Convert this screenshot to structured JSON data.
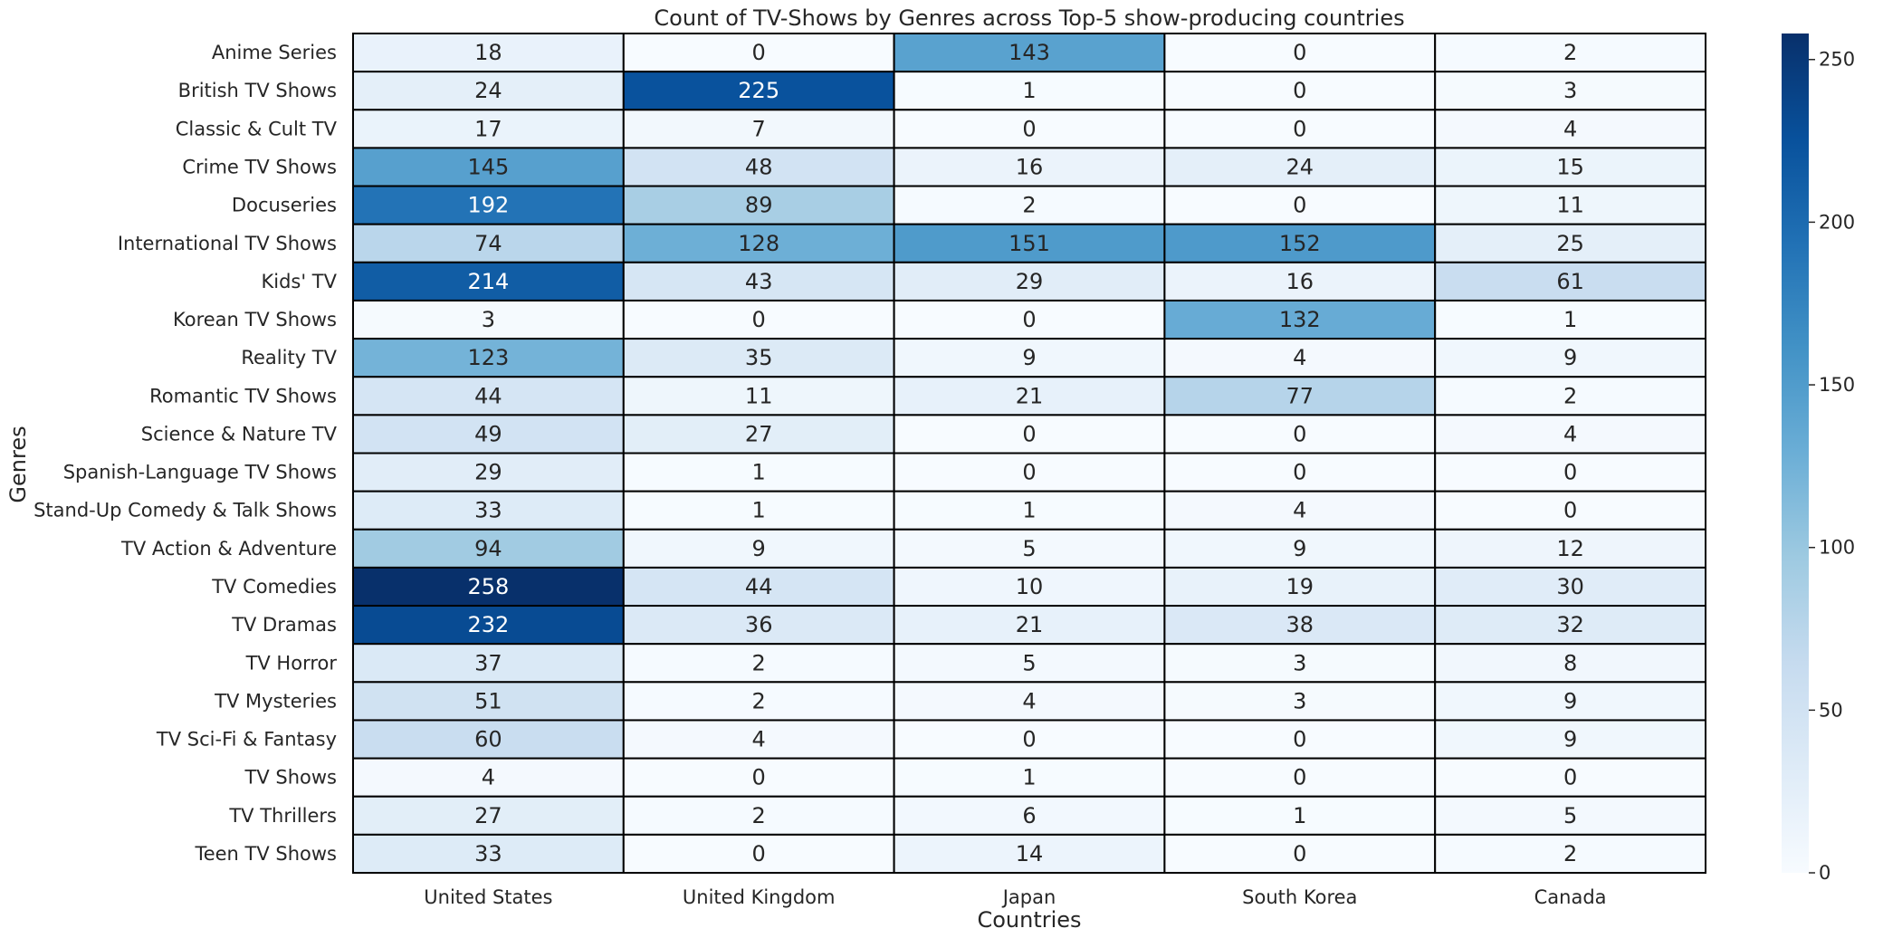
{
  "chart_data": {
    "type": "heatmap",
    "title": "Count of TV-Shows by Genres across Top-5 show-producing countries",
    "xlabel": "Countries",
    "ylabel": "Genres",
    "x": [
      "United States",
      "United Kingdom",
      "Japan",
      "South Korea",
      "Canada"
    ],
    "y": [
      "Anime Series",
      "British TV Shows",
      "Classic & Cult TV",
      "Crime TV Shows",
      "Docuseries",
      "International TV Shows",
      "Kids' TV",
      "Korean TV Shows",
      "Reality TV",
      "Romantic TV Shows",
      "Science & Nature TV",
      "Spanish-Language TV Shows",
      "Stand-Up Comedy & Talk Shows",
      "TV Action & Adventure",
      "TV Comedies",
      "TV Dramas",
      "TV Horror",
      "TV Mysteries",
      "TV Sci-Fi & Fantasy",
      "TV Shows",
      "TV Thrillers",
      "Teen TV Shows"
    ],
    "values": [
      [
        18,
        0,
        143,
        0,
        2
      ],
      [
        24,
        225,
        1,
        0,
        3
      ],
      [
        17,
        7,
        0,
        0,
        4
      ],
      [
        145,
        48,
        16,
        24,
        15
      ],
      [
        192,
        89,
        2,
        0,
        11
      ],
      [
        74,
        128,
        151,
        152,
        25
      ],
      [
        214,
        43,
        29,
        16,
        61
      ],
      [
        3,
        0,
        0,
        132,
        1
      ],
      [
        123,
        35,
        9,
        4,
        9
      ],
      [
        44,
        11,
        21,
        77,
        2
      ],
      [
        49,
        27,
        0,
        0,
        4
      ],
      [
        29,
        1,
        0,
        0,
        0
      ],
      [
        33,
        1,
        1,
        4,
        0
      ],
      [
        94,
        9,
        5,
        9,
        12
      ],
      [
        258,
        44,
        10,
        19,
        30
      ],
      [
        232,
        36,
        21,
        38,
        32
      ],
      [
        37,
        2,
        5,
        3,
        8
      ],
      [
        51,
        2,
        4,
        3,
        9
      ],
      [
        60,
        4,
        0,
        0,
        9
      ],
      [
        4,
        0,
        1,
        0,
        0
      ],
      [
        27,
        2,
        6,
        1,
        5
      ],
      [
        33,
        0,
        14,
        0,
        2
      ]
    ],
    "colormap": "Blues",
    "vmin": 0,
    "vmax": 258,
    "colorbar_ticks": [
      0,
      50,
      100,
      150,
      200,
      250
    ],
    "cell_border_color": "#000000",
    "annotations": true
  }
}
